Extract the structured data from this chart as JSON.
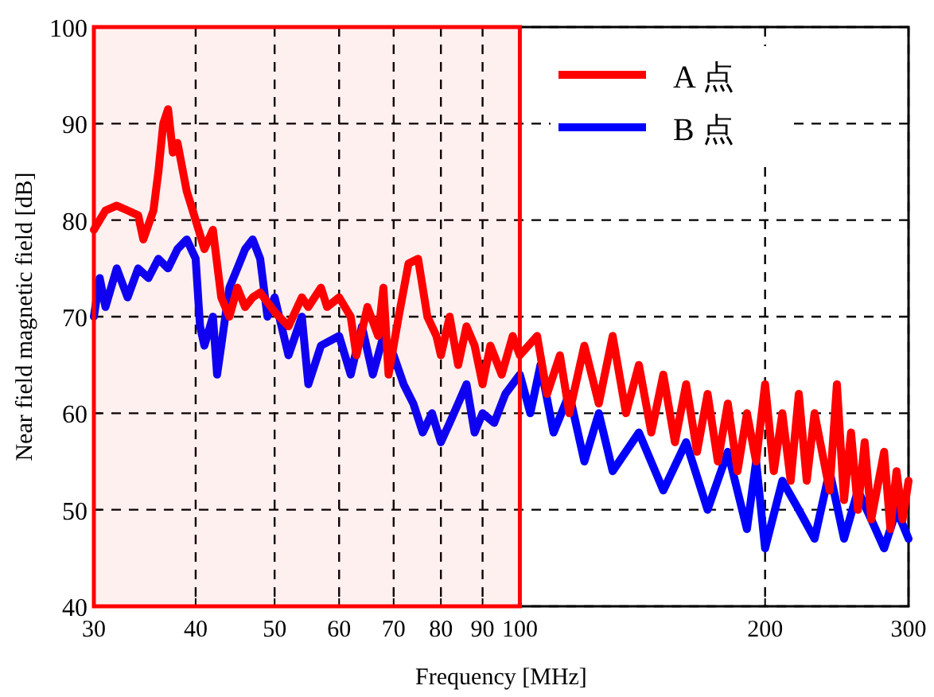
{
  "chart_data": {
    "type": "line",
    "xlabel": "Frequency [MHz]",
    "ylabel": "Near field magnetic field [dB]",
    "log": "x",
    "xlim": [
      30,
      300
    ],
    "xticks": [
      30,
      40,
      50,
      60,
      70,
      80,
      90,
      100,
      200,
      300
    ],
    "ylim": [
      40,
      100
    ],
    "yticks": [
      40,
      50,
      60,
      70,
      80,
      90,
      100
    ],
    "grid": true,
    "legend": "top right",
    "line_style": "solid",
    "bands": [
      {
        "axis": "x",
        "from": 30,
        "to": 100,
        "color": "#ff0000"
      }
    ],
    "series": [
      {
        "name": "A 点",
        "color": "#ff0000",
        "x": [
          30,
          31,
          32,
          33,
          34,
          34.5,
          35.5,
          36,
          36.5,
          37,
          37.5,
          38,
          39,
          40,
          41,
          42,
          43,
          44,
          45,
          46,
          47,
          48,
          50,
          52,
          54,
          55,
          57,
          58,
          60,
          62,
          63,
          65,
          67,
          68,
          69,
          71,
          73,
          75,
          77,
          79,
          80,
          82,
          84,
          86,
          88,
          90,
          92,
          95,
          98,
          100,
          105,
          108,
          112,
          115,
          120,
          125,
          130,
          135,
          140,
          145,
          150,
          155,
          160,
          165,
          170,
          175,
          180,
          185,
          190,
          195,
          200,
          205,
          210,
          215,
          220,
          225,
          230,
          240,
          245,
          250,
          255,
          260,
          265,
          270,
          280,
          285,
          290,
          295,
          300
        ],
        "values": [
          79,
          81,
          81.5,
          81,
          80.5,
          78,
          81,
          85,
          90,
          91.5,
          87,
          88,
          83,
          80,
          77,
          79,
          72,
          70,
          73,
          71,
          72,
          72.5,
          70.5,
          69,
          72,
          71,
          73,
          71,
          72,
          70,
          66,
          71,
          68,
          73,
          64,
          70,
          75.5,
          76,
          70,
          68,
          66,
          70,
          65,
          69,
          67,
          63,
          67,
          64,
          68,
          66,
          68,
          62,
          66,
          60,
          67,
          61,
          68,
          60,
          65,
          58,
          64,
          57,
          63,
          56,
          62,
          55,
          61,
          54,
          60,
          55,
          63,
          54,
          60,
          53,
          62,
          53,
          60,
          52,
          63,
          51,
          58,
          50,
          57,
          49,
          56,
          48,
          54,
          49,
          53
        ]
      },
      {
        "name": "B 点",
        "color": "#0000ff",
        "x": [
          30,
          30.5,
          31,
          32,
          33,
          34,
          35,
          36,
          37,
          38,
          39,
          40,
          40.5,
          41,
          42,
          42.5,
          43,
          44,
          45,
          46,
          47,
          48,
          49,
          50,
          52,
          54,
          55,
          57,
          60,
          62,
          64,
          66,
          68,
          70,
          72,
          74,
          76,
          78,
          80,
          82,
          84,
          86,
          88,
          90,
          93,
          96,
          100,
          103,
          106,
          110,
          115,
          120,
          125,
          130,
          140,
          150,
          160,
          170,
          180,
          190,
          195,
          200,
          210,
          220,
          230,
          240,
          250,
          260,
          270,
          280,
          290,
          300
        ],
        "values": [
          70,
          74,
          71,
          75,
          72,
          75,
          74,
          76,
          75,
          77,
          78,
          76,
          69,
          67,
          70,
          64,
          67,
          73,
          75,
          77,
          78,
          76,
          70,
          72,
          66,
          70,
          63,
          67,
          68,
          64,
          69,
          64,
          68,
          66,
          63,
          61,
          58,
          60,
          57,
          59,
          61,
          63,
          58,
          60,
          59,
          62,
          64,
          60,
          65,
          58,
          62,
          55,
          60,
          54,
          58,
          52,
          57,
          50,
          56,
          48,
          55,
          46,
          53,
          50,
          47,
          54,
          47,
          52,
          49,
          46,
          50,
          47
        ]
      }
    ]
  }
}
